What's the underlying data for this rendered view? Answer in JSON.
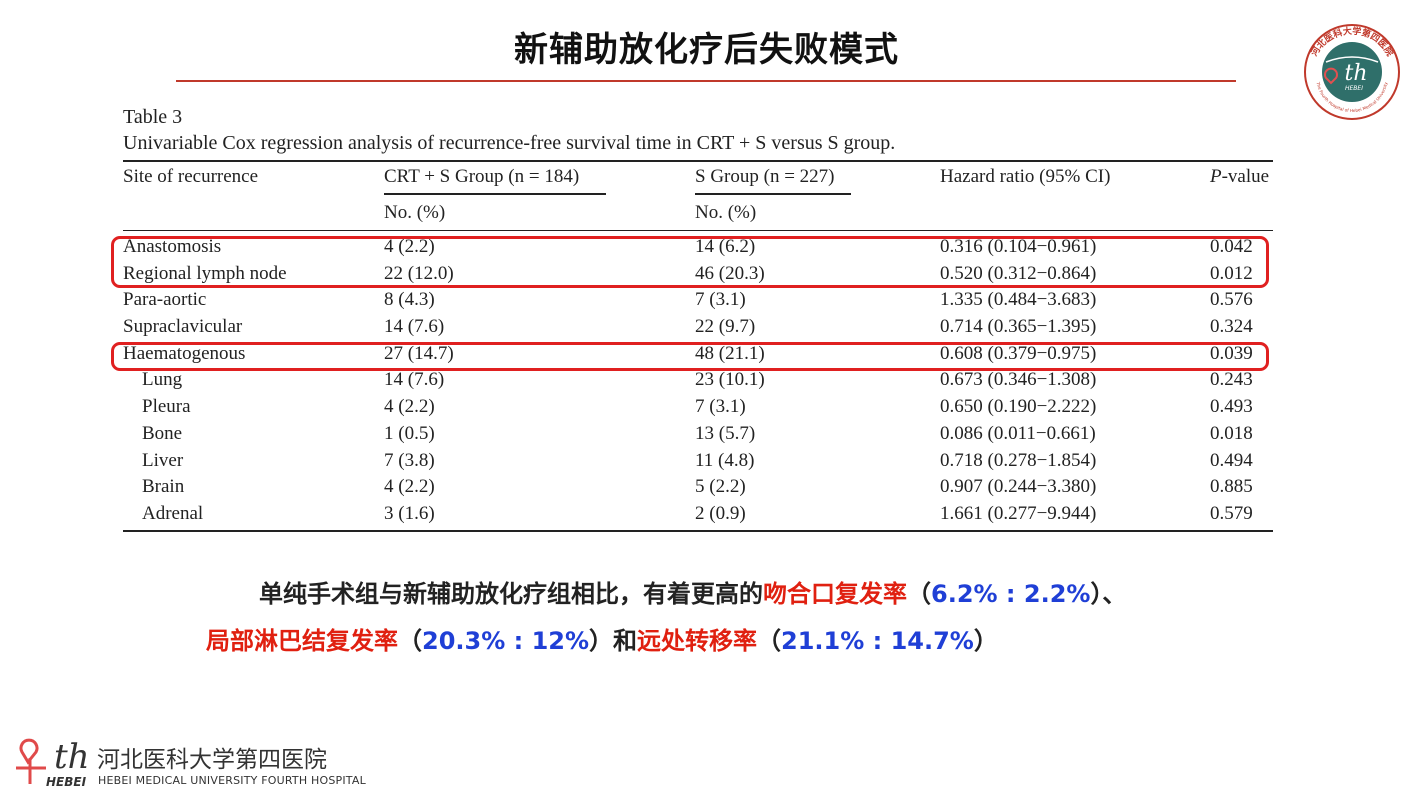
{
  "slide": {
    "title": "新辅助放化疗后失败模式"
  },
  "table": {
    "label": "Table 3",
    "caption": "Univariable Cox regression analysis of recurrence-free survival time in CRT + S versus S group.",
    "headers": {
      "site": "Site of recurrence",
      "crt_group": "CRT + S Group (n = 184)",
      "s_group": "S Group (n = 227)",
      "hazard_ratio": "Hazard ratio (95% CI)",
      "p_prefix": "P",
      "p_suffix": "-value",
      "crt_sub": "No. (%)",
      "s_sub": "No. (%)"
    },
    "rows": [
      {
        "site": "Anastomosis",
        "crt": "4 (2.2)",
        "s": "14 (6.2)",
        "hr": "0.316 (0.104−0.961)",
        "p": "0.042",
        "indent": false
      },
      {
        "site": "Regional lymph node",
        "crt": "22 (12.0)",
        "s": "46 (20.3)",
        "hr": "0.520 (0.312−0.864)",
        "p": "0.012",
        "indent": false
      },
      {
        "site": "Para-aortic",
        "crt": "8 (4.3)",
        "s": "7 (3.1)",
        "hr": "1.335 (0.484−3.683)",
        "p": "0.576",
        "indent": false
      },
      {
        "site": "Supraclavicular",
        "crt": "14 (7.6)",
        "s": "22 (9.7)",
        "hr": "0.714 (0.365−1.395)",
        "p": "0.324",
        "indent": false
      },
      {
        "site": "Haematogenous",
        "crt": "27 (14.7)",
        "s": "48 (21.1)",
        "hr": "0.608 (0.379−0.975)",
        "p": "0.039",
        "indent": false
      },
      {
        "site": "Lung",
        "crt": "14 (7.6)",
        "s": "23 (10.1)",
        "hr": "0.673 (0.346−1.308)",
        "p": "0.243",
        "indent": true
      },
      {
        "site": "Pleura",
        "crt": "4 (2.2)",
        "s": "7 (3.1)",
        "hr": "0.650 (0.190−2.222)",
        "p": "0.493",
        "indent": true
      },
      {
        "site": "Bone",
        "crt": "1 (0.5)",
        "s": "13 (5.7)",
        "hr": "0.086 (0.011−0.661)",
        "p": "0.018",
        "indent": true
      },
      {
        "site": "Liver",
        "crt": "7 (3.8)",
        "s": "11 (4.8)",
        "hr": "0.718 (0.278−1.854)",
        "p": "0.494",
        "indent": true
      },
      {
        "site": "Brain",
        "crt": "4 (2.2)",
        "s": "5 (2.2)",
        "hr": "0.907 (0.244−3.380)",
        "p": "0.885",
        "indent": true
      },
      {
        "site": "Adrenal",
        "crt": "3 (1.6)",
        "s": "2 (0.9)",
        "hr": "1.661 (0.277−9.944)",
        "p": "0.579",
        "indent": true
      }
    ]
  },
  "summary": {
    "line1": {
      "t1": "单纯手术组与新辅助放化疗组相比，有着更高的",
      "r1": "吻合口复发率",
      "t2": "（",
      "b1": "6.2% : 2.2%",
      "t3": "）、"
    },
    "line2": {
      "r1": "局部淋巴结复发率",
      "t1": "（",
      "b1": "20.3% : 12%",
      "t2": "）和",
      "r2": "远处转移率",
      "t3": "（",
      "b2": "21.1% : 14.7%",
      "t4": "）"
    }
  },
  "logo": {
    "mark": "th",
    "mark_sub": "HEBEI",
    "cn_name": "河北医科大学第四医院",
    "en_name": "HEBEI MEDICAL UNIVERSITY FOURTH HOSPITAL",
    "seal_cn": "河北医科大学第四医院",
    "seal_en": "The Fourth Hospital of Hebei Medical University"
  },
  "colors": {
    "highlight_red": "#e02020",
    "text_red": "#e02010",
    "text_blue": "#1f3fd6",
    "seal_teal": "#2f6f6a"
  }
}
